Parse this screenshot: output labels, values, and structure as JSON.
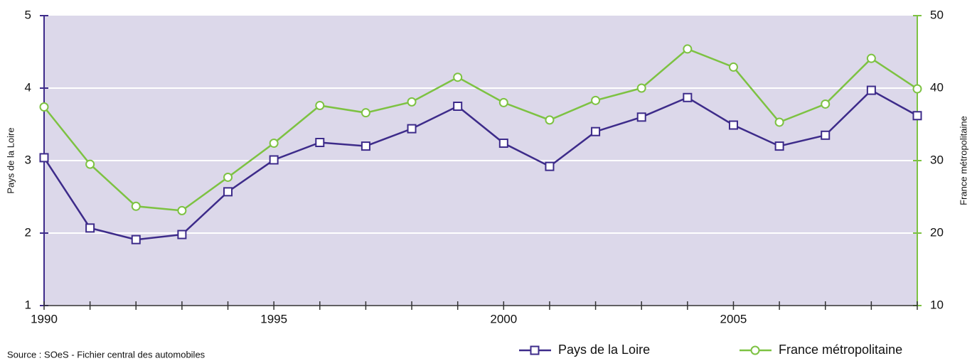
{
  "chart_data": {
    "type": "line",
    "x": [
      1990,
      1991,
      1992,
      1993,
      1994,
      1995,
      1996,
      1997,
      1998,
      1999,
      2000,
      2001,
      2002,
      2003,
      2004,
      2005,
      2006,
      2007,
      2008,
      2009
    ],
    "xlim": [
      1990,
      2009
    ],
    "xticks": [
      1990,
      1995,
      2000,
      2005
    ],
    "ylim": [
      1,
      5
    ],
    "yticks": [
      1,
      2,
      3,
      4,
      5
    ],
    "ylabel": "Pays de la Loire",
    "y2lim": [
      10,
      50
    ],
    "y2ticks": [
      10,
      20,
      30,
      40,
      50
    ],
    "y2label": "France métropolitaine",
    "grid": true,
    "legend": "bottom-right",
    "source": "Source : SOeS - Fichier central des automobiles",
    "series": [
      {
        "name": "Pays de la Loire",
        "color": "#3d2b8a",
        "marker": "square",
        "values": [
          3.04,
          2.07,
          1.91,
          1.98,
          2.57,
          3.01,
          3.25,
          3.2,
          3.44,
          3.75,
          3.24,
          2.92,
          3.4,
          3.6,
          3.87,
          3.49,
          3.2,
          3.35,
          3.97,
          3.62
        ]
      },
      {
        "name": "France métropolitaine",
        "color": "#7dc242",
        "marker": "circle",
        "axis": "y2",
        "values": [
          37.4,
          29.5,
          23.7,
          23.1,
          27.7,
          32.4,
          37.6,
          36.6,
          38.1,
          41.5,
          38.0,
          35.6,
          38.3,
          40.0,
          45.4,
          42.9,
          35.3,
          37.8,
          44.1,
          39.9
        ]
      }
    ]
  }
}
